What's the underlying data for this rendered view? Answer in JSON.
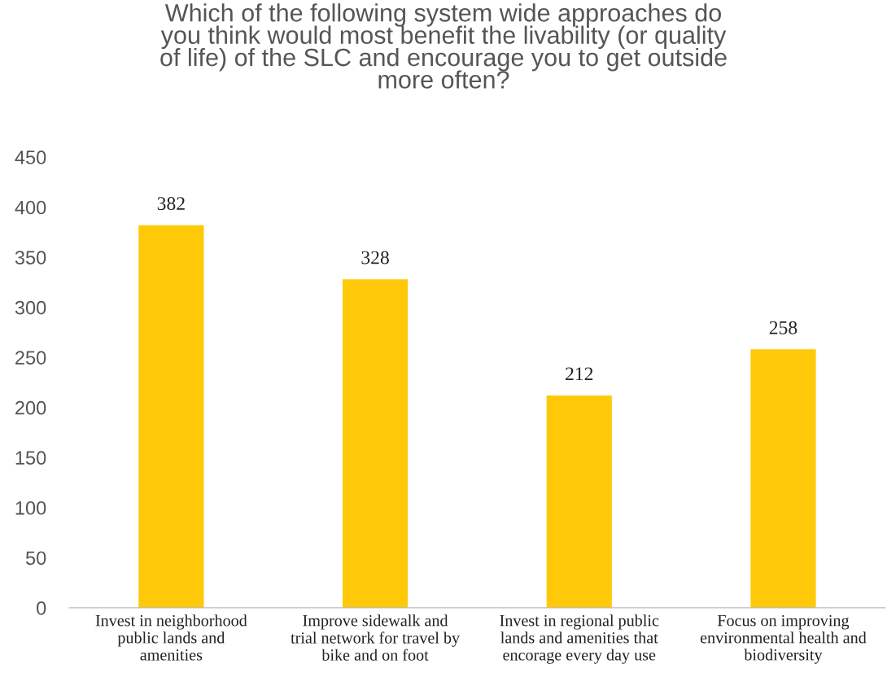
{
  "chart_data": {
    "type": "bar",
    "title": "Which of the following system wide approaches do\nyou think would most benefit the livability (or quality\nof life) of the SLC and encourage you to get outside\nmore often?",
    "categories": [
      "Invest in neighborhood\npublic lands and\namenities",
      "Improve sidewalk and\ntrial network for travel by\nbike and on foot",
      "Invest in regional public\nlands and amenities that\nencorage every day use",
      "Focus on improving\nenvironmental health and\nbiodiversity"
    ],
    "values": [
      382,
      328,
      212,
      258
    ],
    "color": "#ffc90a",
    "ylim": [
      0,
      450
    ],
    "yticks": [
      0,
      50,
      100,
      150,
      200,
      250,
      300,
      350,
      400,
      450
    ],
    "data_labels": true,
    "grid": false,
    "legend": false
  }
}
